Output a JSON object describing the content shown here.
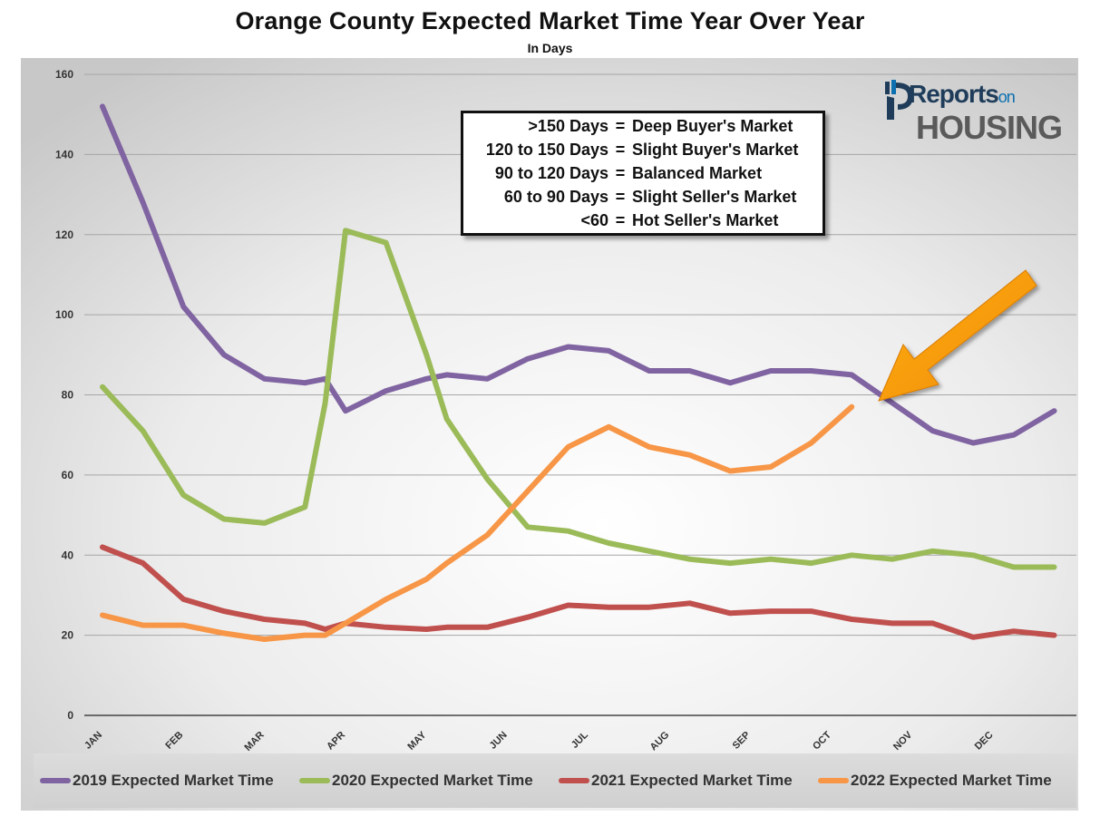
{
  "title": "Orange County Expected Market Time Year Over Year",
  "subtitle": "In Days",
  "info_box": [
    {
      "range": ">150 Days",
      "label": "Deep Buyer's Market"
    },
    {
      "range": "120 to 150 Days",
      "label": "Slight Buyer's Market"
    },
    {
      "range": "90 to 120 Days",
      "label": "Balanced Market"
    },
    {
      "range": "60 to 90 Days",
      "label": "Slight Seller's Market"
    },
    {
      "range": "<60",
      "label": "Hot Seller's Market"
    }
  ],
  "logo": {
    "line1": "Reports",
    "line1_small": "on",
    "line2": "HOUSING"
  },
  "colors": {
    "s2019": "#8064a2",
    "s2020": "#9bbb59",
    "s2021": "#c0504d",
    "s2022": "#f79646",
    "arrow": "#ff9900"
  },
  "chart_data": {
    "type": "line",
    "title": "Orange County Expected Market Time Year Over Year",
    "subtitle": "In Days",
    "ylim": [
      0,
      160
    ],
    "yticks": [
      0,
      20,
      40,
      60,
      80,
      100,
      120,
      140,
      160
    ],
    "xlim": [
      1,
      12.8
    ],
    "xticks": [
      {
        "label": "JAN",
        "x": 1
      },
      {
        "label": "FEB",
        "x": 2
      },
      {
        "label": "MAR",
        "x": 3
      },
      {
        "label": "APR",
        "x": 4
      },
      {
        "label": "MAY",
        "x": 5
      },
      {
        "label": "JUN",
        "x": 6
      },
      {
        "label": "JUL",
        "x": 7
      },
      {
        "label": "AUG",
        "x": 8
      },
      {
        "label": "SEP",
        "x": 9
      },
      {
        "label": "OCT",
        "x": 10
      },
      {
        "label": "NOV",
        "x": 11
      },
      {
        "label": "DEC",
        "x": 12
      }
    ],
    "grid": true,
    "legend_position": "bottom",
    "annotation": "orange arrow pointing to latest 2022 value",
    "series": [
      {
        "name": "2019 Expected Market Time",
        "color": "#8064a2",
        "x": [
          1,
          1.5,
          2,
          2.5,
          3,
          3.5,
          3.75,
          4,
          4.5,
          5,
          5.25,
          5.75,
          6.25,
          6.75,
          7.25,
          7.75,
          8.25,
          8.75,
          9.25,
          9.75,
          10.25,
          10.75,
          11.25,
          11.75,
          12.25,
          12.75
        ],
        "y": [
          152,
          128,
          102,
          90,
          84,
          83,
          84,
          76,
          81,
          84,
          85,
          84,
          89,
          92,
          91,
          86,
          86,
          83,
          86,
          86,
          85,
          78,
          71,
          68,
          70,
          76
        ]
      },
      {
        "name": "2020 Expected Market Time",
        "color": "#9bbb59",
        "x": [
          1,
          1.5,
          2,
          2.5,
          3,
          3.5,
          3.75,
          4,
          4.5,
          5,
          5.25,
          5.75,
          6.25,
          6.75,
          7.25,
          7.75,
          8.25,
          8.75,
          9.25,
          9.75,
          10.25,
          10.75,
          11.25,
          11.75,
          12.25,
          12.75
        ],
        "y": [
          82,
          71,
          55,
          49,
          48,
          52,
          78,
          121,
          118,
          90,
          74,
          59,
          47,
          46,
          43,
          41,
          39,
          38,
          39,
          38,
          40,
          39,
          41,
          40,
          37,
          37
        ]
      },
      {
        "name": "2021 Expected Market Time",
        "color": "#c0504d",
        "x": [
          1,
          1.5,
          2,
          2.5,
          3,
          3.5,
          3.75,
          4,
          4.5,
          5,
          5.25,
          5.75,
          6.25,
          6.75,
          7.25,
          7.75,
          8.25,
          8.75,
          9.25,
          9.75,
          10.25,
          10.75,
          11.25,
          11.75,
          12.25,
          12.75
        ],
        "y": [
          42,
          38,
          29,
          26,
          24,
          23,
          21.5,
          23,
          22,
          21.5,
          22,
          22,
          24.5,
          27.5,
          27,
          27,
          28,
          25.5,
          26,
          26,
          24,
          23,
          23,
          19.5,
          21,
          20
        ]
      },
      {
        "name": "2022 Expected Market Time",
        "color": "#f79646",
        "x": [
          1,
          1.5,
          2,
          2.5,
          3,
          3.5,
          3.75,
          4,
          4.5,
          5,
          5.25,
          5.75,
          6.25,
          6.75,
          7.25,
          7.75,
          8.25,
          8.75,
          9.25,
          9.75,
          10.25
        ],
        "y": [
          25,
          22.5,
          22.5,
          20.5,
          19,
          20,
          20,
          23,
          29,
          34,
          38,
          45,
          56,
          67,
          72,
          67,
          65,
          61,
          62,
          68,
          77
        ]
      }
    ]
  }
}
